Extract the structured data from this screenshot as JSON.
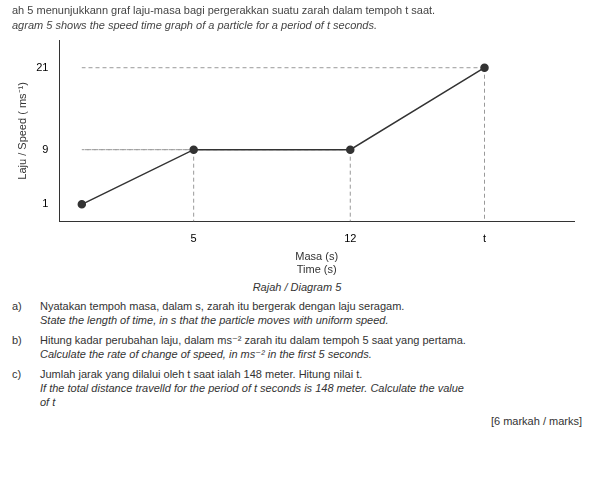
{
  "chart_data": {
    "type": "line",
    "title": "ah 5 menunjukkann graf laju-masa bagi pergerakkan suatu zarah dalam tempoh t saat.",
    "subtitle": "agram 5 shows the speed time graph of a particle for a period of t seconds.",
    "xlabel": [
      "Masa (s)",
      "Time (s)"
    ],
    "ylabel": "Laju / Speed ( ms⁻¹)",
    "x": [
      0,
      5,
      12,
      18
    ],
    "values": [
      1,
      9,
      9,
      21
    ],
    "color": "#333333",
    "marker": "circle",
    "xlim": [
      -1,
      22
    ],
    "xticks": [
      5,
      12,
      {
        "value": 18,
        "label": "t"
      }
    ],
    "ylim": [
      -1.5,
      25
    ],
    "yticks": [
      1,
      9,
      21
    ],
    "grid": false,
    "caption": "Rajah / Diagram 5",
    "questions": [
      {
        "label": "a)",
        "lines": [
          "Nyatakan tempoh masa, dalam s, zarah itu bergerak dengan laju seragam.",
          "State the length of time, in s that the particle moves with uniform speed."
        ]
      },
      {
        "label": "b)",
        "lines": [
          "Hitung kadar perubahan laju, dalam ms⁻² zarah itu dalam tempoh 5 saat yang pertama.",
          "Calculate the rate of change of speed, in ms⁻² in the first 5 seconds."
        ]
      },
      {
        "label": "c)",
        "lines": [
          "Jumlah jarak yang dilalui oleh t saat ialah 148 meter. Hitung nilai t.",
          "If the total distance travelld for the period of t seconds is 148 meter. Calculate the value",
          "of t"
        ]
      }
    ],
    "marks": "[6 markah / marks]"
  }
}
